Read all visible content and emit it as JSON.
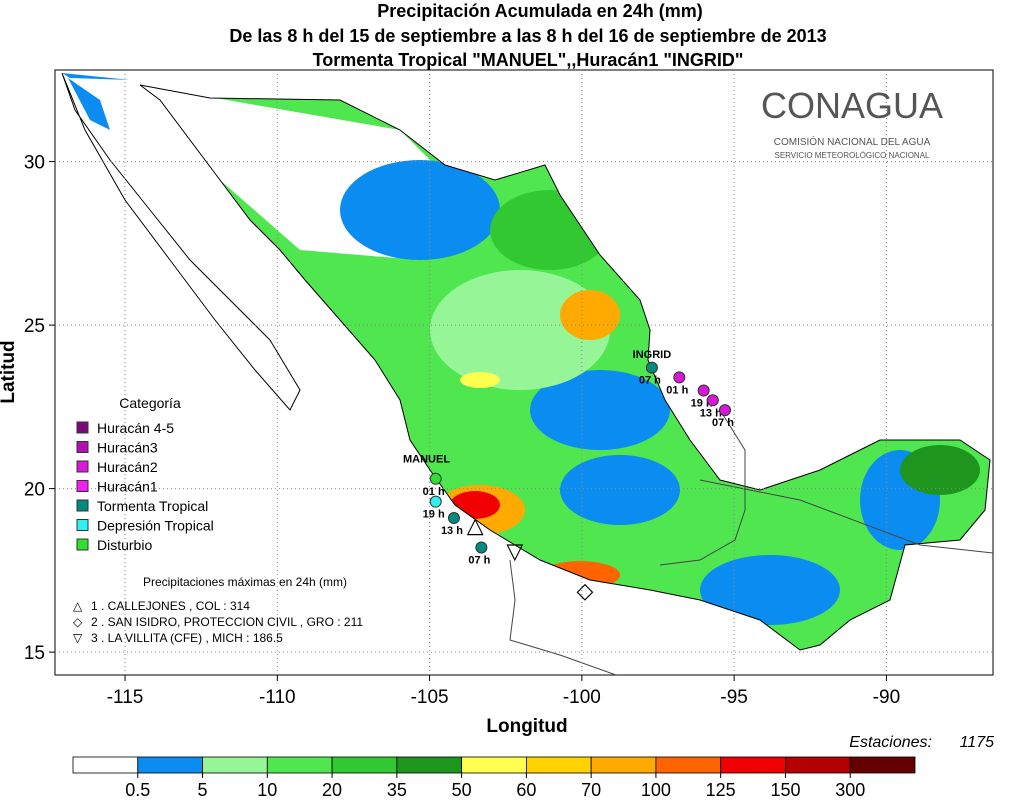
{
  "map": {
    "title_lines": [
      "Precipitación Acumulada en 24h (mm)",
      "De las 8 h del 15 de septiembre  a las 8 h del 16 de septiembre de 2013",
      "Tormenta Tropical \"MANUEL\",,Huracán1 \"INGRID\""
    ],
    "logo": {
      "name": "CONAGUA",
      "line1": "COMISIÓN NACIONAL DEL AGUA",
      "line2": "SERVICIO METEOROLÓGICO NACIONAL"
    },
    "xlabel": "Longitud",
    "ylabel": "Latitud",
    "xlim": [
      -117.3,
      -86.5
    ],
    "ylim": [
      14.3,
      32.8
    ],
    "xticks": [
      -115,
      -110,
      -105,
      -100,
      -95,
      -90
    ],
    "yticks": [
      15,
      20,
      25,
      30
    ],
    "legend": {
      "title": "Categoría",
      "items": [
        {
          "name": "Huracán 4-5",
          "color": "#7a0a7a"
        },
        {
          "name": "Huracán3",
          "color": "#b010b0"
        },
        {
          "name": "Huracán2",
          "color": "#d818d8"
        },
        {
          "name": "Huracán1",
          "color": "#f020f0"
        },
        {
          "name": "Tormenta Tropical",
          "color": "#008a80"
        },
        {
          "name": "Depresión Tropical",
          "color": "#30f0f0"
        },
        {
          "name": "Disturbio",
          "color": "#30e030"
        }
      ]
    },
    "storms": [
      {
        "name": "INGRID",
        "lon": -97.7,
        "lat": 24.0,
        "points": [
          {
            "lon": -97.7,
            "lat": 23.7,
            "label": "07 h",
            "color": "#008a80"
          },
          {
            "lon": -96.8,
            "lat": 23.4,
            "label": "01 h",
            "color": "#d818d8"
          },
          {
            "lon": -96.0,
            "lat": 23.0,
            "label": "19 h",
            "color": "#d818d8"
          },
          {
            "lon": -95.7,
            "lat": 22.7,
            "label": "13 h",
            "color": "#d818d8"
          },
          {
            "lon": -95.3,
            "lat": 22.4,
            "label": "07 h",
            "color": "#d818d8"
          }
        ]
      },
      {
        "name": "MANUEL",
        "lon": -105.1,
        "lat": 20.8,
        "points": [
          {
            "lon": -104.8,
            "lat": 20.3,
            "label": "01 h",
            "color": "#30e030"
          },
          {
            "lon": -104.8,
            "lat": 19.6,
            "label": "19 h",
            "color": "#30f0f0"
          },
          {
            "lon": -104.2,
            "lat": 19.1,
            "label": "13 h",
            "color": "#008a80"
          },
          {
            "lon": -103.3,
            "lat": 18.2,
            "label": "07 h",
            "color": "#008a80"
          }
        ]
      }
    ],
    "maxima": {
      "title": "Precipitaciones máximas en 24h (mm)",
      "items": [
        {
          "symbol": "△",
          "text": "1 . CALLEJONES , COL : 314",
          "lon": -103.5,
          "lat": 18.9
        },
        {
          "symbol": "◇",
          "text": "2 . SAN ISIDRO, PROTECCION CIVIL , GRO : 211",
          "lon": -99.9,
          "lat": 16.9
        },
        {
          "symbol": "▽",
          "text": "3 . LA VILLITA (CFE) , MICH : 186.5",
          "lon": -102.2,
          "lat": 18.1
        }
      ]
    },
    "stations_label": "Estaciones:",
    "stations": 1175,
    "colorbar": {
      "colors": [
        "#ffffff",
        "#0a8cf0",
        "#96f596",
        "#50e650",
        "#32c832",
        "#1e961e",
        "#ffff50",
        "#ffd200",
        "#ffaa00",
        "#ff6400",
        "#f00000",
        "#b40000",
        "#640000"
      ],
      "ticks": [
        0.5,
        5,
        10,
        20,
        35,
        50,
        60,
        70,
        100,
        125,
        150,
        300
      ]
    }
  }
}
